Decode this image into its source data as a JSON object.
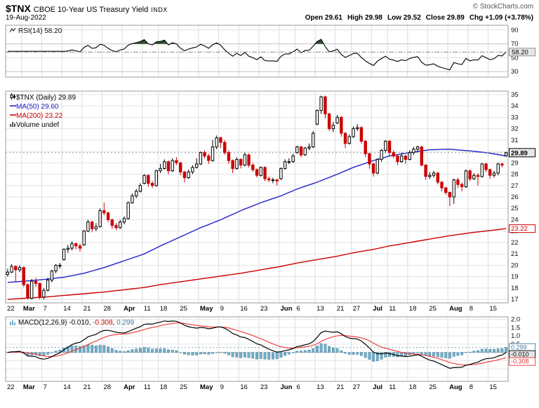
{
  "header": {
    "symbol": "$TNX",
    "name": "CBOE 10-Year US Treasury Yield",
    "exchange": "INDX",
    "copyright": "© StockCharts.com",
    "date": "19-Aug-2022",
    "quote": {
      "items": [
        {
          "label": "Open",
          "value": "29.61"
        },
        {
          "label": "High",
          "value": "29.98"
        },
        {
          "label": "Low",
          "value": "29.52"
        },
        {
          "label": "Close",
          "value": "29.89"
        },
        {
          "label": "Chg",
          "value": "+1.09 (+3.78%)"
        }
      ]
    }
  },
  "rsi_panel": {
    "label": "RSI(14) 58.20",
    "last_value": "58.20"
  },
  "main_panel": {
    "legend": {
      "tnx": "$TNX (Daily) 29.89",
      "ma50": "MA(50) 29.60",
      "ma200": "MA(200) 23.22",
      "volume": "Volume undef"
    },
    "last_price": "29.89",
    "ma200_value": "23.22"
  },
  "macd_panel": {
    "label": "MACD(12,26,9)",
    "macd_value": "-0.010",
    "signal_value": "-0.308",
    "hist_value": "0.299"
  },
  "chart_data": {
    "type": "candlestick",
    "symbol": "$TNX",
    "timeframe": "Daily",
    "date_range": "22-Feb-2022 to 19-Aug-2022",
    "x_week_labels": [
      "22",
      "Mar",
      "7",
      "14",
      "21",
      "28",
      "Apr",
      "11",
      "18",
      "25",
      "May",
      "9",
      "16",
      "23",
      "Jun",
      "6",
      "13",
      "21",
      "27",
      "Jul",
      "11",
      "18",
      "25",
      "Aug",
      "8",
      "15"
    ],
    "x_week_start_indices": [
      0,
      4,
      9,
      14,
      19,
      24,
      29,
      34,
      38,
      43,
      48,
      53,
      58,
      63,
      68,
      72,
      77,
      82,
      86,
      91,
      95,
      100,
      105,
      110,
      115,
      120
    ],
    "x_month_label_indices": [
      1,
      6,
      10,
      14,
      19,
      23
    ],
    "main_axis": {
      "min": 17,
      "max": 35,
      "tick_step": 1,
      "last_price": 29.89
    },
    "candles_ohlc": [
      [
        19.2,
        19.7,
        19.0,
        19.4
      ],
      [
        19.4,
        20.1,
        19.3,
        19.9
      ],
      [
        19.9,
        20.0,
        18.6,
        19.6
      ],
      [
        19.6,
        20.0,
        19.4,
        19.8
      ],
      [
        19.8,
        19.9,
        18.1,
        18.3
      ],
      [
        18.3,
        18.4,
        17.0,
        17.1
      ],
      [
        17.1,
        18.8,
        17.0,
        18.6
      ],
      [
        18.6,
        18.9,
        18.1,
        18.4
      ],
      [
        18.4,
        18.5,
        17.0,
        17.2
      ],
      [
        17.2,
        18.0,
        17.0,
        17.8
      ],
      [
        17.8,
        18.9,
        17.7,
        18.7
      ],
      [
        18.7,
        19.6,
        18.5,
        19.5
      ],
      [
        19.5,
        20.1,
        19.3,
        20.0
      ],
      [
        20.0,
        20.2,
        19.7,
        20.0
      ],
      [
        20.5,
        21.5,
        20.4,
        21.4
      ],
      [
        21.4,
        21.8,
        21.1,
        21.5
      ],
      [
        21.5,
        22.1,
        21.3,
        21.9
      ],
      [
        21.9,
        22.0,
        21.4,
        21.7
      ],
      [
        21.7,
        21.9,
        21.2,
        21.5
      ],
      [
        21.8,
        23.1,
        21.7,
        23.0
      ],
      [
        23.0,
        24.0,
        22.9,
        23.8
      ],
      [
        23.8,
        23.9,
        22.9,
        23.2
      ],
      [
        23.2,
        23.7,
        23.0,
        23.4
      ],
      [
        23.4,
        25.0,
        23.3,
        24.8
      ],
      [
        24.8,
        25.5,
        24.4,
        24.6
      ],
      [
        24.6,
        24.7,
        23.8,
        24.0
      ],
      [
        24.0,
        24.1,
        23.2,
        23.5
      ],
      [
        23.5,
        23.7,
        23.1,
        23.3
      ],
      [
        23.3,
        24.0,
        23.2,
        23.8
      ],
      [
        23.8,
        24.3,
        23.6,
        24.1
      ],
      [
        24.1,
        25.6,
        24.0,
        25.5
      ],
      [
        25.5,
        26.3,
        25.4,
        26.1
      ],
      [
        26.1,
        26.7,
        25.9,
        26.5
      ],
      [
        26.5,
        27.2,
        26.4,
        27.0
      ],
      [
        27.2,
        28.0,
        27.1,
        27.9
      ],
      [
        27.9,
        28.0,
        26.9,
        27.2
      ],
      [
        27.2,
        27.4,
        26.8,
        27.0
      ],
      [
        27.0,
        28.4,
        26.9,
        28.3
      ],
      [
        28.3,
        28.9,
        28.1,
        28.5
      ],
      [
        28.5,
        29.3,
        28.4,
        29.1
      ],
      [
        29.1,
        29.2,
        28.0,
        28.3
      ],
      [
        28.3,
        29.4,
        28.2,
        29.2
      ],
      [
        29.2,
        29.5,
        28.8,
        29.0
      ],
      [
        29.0,
        29.1,
        27.9,
        28.2
      ],
      [
        28.2,
        28.3,
        27.3,
        27.7
      ],
      [
        27.7,
        28.4,
        27.6,
        28.2
      ],
      [
        28.2,
        28.8,
        28.0,
        28.6
      ],
      [
        28.6,
        29.4,
        28.5,
        28.9
      ],
      [
        28.9,
        30.0,
        28.8,
        29.9
      ],
      [
        29.9,
        30.1,
        29.4,
        29.6
      ],
      [
        29.6,
        29.8,
        28.9,
        29.2
      ],
      [
        29.2,
        31.0,
        29.1,
        30.4
      ],
      [
        30.4,
        31.4,
        30.2,
        31.2
      ],
      [
        31.2,
        31.3,
        30.3,
        30.8
      ],
      [
        30.8,
        31.0,
        29.7,
        29.9
      ],
      [
        29.9,
        30.1,
        28.9,
        29.2
      ],
      [
        29.2,
        29.3,
        28.1,
        28.5
      ],
      [
        28.5,
        29.5,
        28.4,
        29.3
      ],
      [
        29.3,
        29.4,
        28.5,
        28.8
      ],
      [
        28.8,
        29.9,
        28.7,
        29.7
      ],
      [
        29.7,
        29.8,
        28.6,
        28.8
      ],
      [
        28.8,
        29.0,
        28.2,
        28.4
      ],
      [
        28.4,
        28.5,
        27.7,
        27.9
      ],
      [
        27.9,
        28.7,
        27.8,
        28.6
      ],
      [
        28.6,
        28.7,
        27.4,
        27.6
      ],
      [
        27.6,
        27.8,
        27.3,
        27.5
      ],
      [
        27.5,
        27.7,
        27.2,
        27.5
      ],
      [
        27.5,
        27.6,
        27.0,
        27.4
      ],
      [
        27.6,
        28.6,
        27.5,
        28.5
      ],
      [
        28.5,
        29.3,
        28.4,
        29.1
      ],
      [
        29.1,
        29.4,
        28.9,
        29.1
      ],
      [
        29.1,
        29.8,
        29.0,
        29.6
      ],
      [
        29.9,
        30.5,
        29.8,
        30.4
      ],
      [
        30.4,
        30.5,
        29.5,
        29.7
      ],
      [
        29.7,
        30.4,
        29.6,
        30.3
      ],
      [
        30.3,
        30.7,
        30.1,
        30.4
      ],
      [
        30.4,
        31.8,
        30.3,
        31.6
      ],
      [
        32.4,
        33.7,
        32.3,
        33.6
      ],
      [
        33.6,
        34.9,
        33.3,
        34.8
      ],
      [
        34.8,
        34.9,
        32.9,
        33.3
      ],
      [
        33.3,
        33.4,
        31.8,
        32.0
      ],
      [
        32.0,
        32.6,
        31.7,
        32.3
      ],
      [
        32.5,
        33.2,
        32.4,
        33.0
      ],
      [
        33.0,
        33.1,
        31.3,
        31.6
      ],
      [
        31.6,
        31.7,
        30.3,
        30.7
      ],
      [
        30.7,
        31.5,
        30.6,
        31.3
      ],
      [
        31.3,
        32.2,
        31.2,
        32.0
      ],
      [
        32.0,
        32.4,
        31.8,
        32.1
      ],
      [
        32.1,
        32.2,
        30.7,
        30.9
      ],
      [
        30.9,
        31.0,
        29.5,
        29.8
      ],
      [
        29.8,
        29.9,
        28.5,
        28.9
      ],
      [
        28.9,
        29.0,
        27.8,
        28.1
      ],
      [
        28.1,
        29.4,
        28.0,
        29.3
      ],
      [
        29.3,
        30.2,
        29.1,
        30.1
      ],
      [
        30.1,
        31.0,
        29.9,
        30.9
      ],
      [
        30.9,
        31.0,
        29.6,
        29.9
      ],
      [
        29.9,
        30.1,
        29.4,
        29.6
      ],
      [
        29.6,
        29.7,
        28.8,
        29.1
      ],
      [
        29.1,
        29.9,
        29.0,
        29.6
      ],
      [
        29.6,
        29.7,
        28.9,
        29.3
      ],
      [
        29.3,
        30.1,
        29.2,
        29.9
      ],
      [
        29.9,
        30.4,
        29.7,
        30.2
      ],
      [
        30.2,
        30.5,
        29.9,
        30.4
      ],
      [
        30.4,
        30.5,
        28.7,
        28.8
      ],
      [
        28.8,
        28.9,
        27.5,
        27.8
      ],
      [
        27.8,
        28.2,
        27.6,
        27.9
      ],
      [
        27.9,
        28.3,
        27.7,
        28.1
      ],
      [
        28.1,
        28.2,
        27.1,
        27.3
      ],
      [
        27.3,
        27.4,
        26.5,
        26.8
      ],
      [
        26.8,
        26.9,
        26.2,
        26.4
      ],
      [
        26.4,
        26.5,
        25.2,
        26.0
      ],
      [
        26.0,
        27.6,
        25.4,
        27.5
      ],
      [
        27.5,
        27.7,
        26.8,
        27.1
      ],
      [
        27.1,
        27.3,
        26.5,
        26.9
      ],
      [
        26.9,
        28.4,
        26.8,
        28.3
      ],
      [
        28.3,
        28.4,
        27.4,
        27.6
      ],
      [
        27.6,
        28.1,
        27.5,
        27.9
      ],
      [
        27.9,
        28.1,
        27.0,
        27.8
      ],
      [
        27.8,
        29.0,
        27.7,
        28.9
      ],
      [
        28.9,
        29.0,
        28.2,
        28.4
      ],
      [
        28.4,
        28.5,
        27.6,
        27.9
      ],
      [
        27.9,
        28.3,
        27.7,
        28.1
      ],
      [
        28.1,
        29.0,
        27.9,
        28.9
      ],
      [
        28.9,
        29.0,
        28.6,
        28.8
      ],
      [
        29.61,
        29.98,
        29.52,
        29.89
      ]
    ],
    "ma50": {
      "period": 50,
      "last": 29.6,
      "anchor_indices": [
        0,
        4,
        9,
        14,
        19,
        24,
        29,
        34,
        38,
        43,
        48,
        53,
        58,
        63,
        68,
        72,
        77,
        82,
        86,
        91,
        95,
        100,
        105,
        110,
        115,
        120,
        124
      ],
      "anchor_values": [
        18.5,
        18.6,
        18.75,
        18.95,
        19.3,
        19.8,
        20.4,
        21.0,
        21.7,
        22.5,
        23.3,
        24.0,
        24.8,
        25.5,
        26.1,
        26.7,
        27.3,
        28.0,
        28.6,
        29.2,
        29.6,
        29.9,
        30.15,
        30.2,
        30.05,
        29.85,
        29.6
      ]
    },
    "ma200": {
      "period": 200,
      "last": 23.22,
      "anchor_indices": [
        0,
        4,
        9,
        14,
        19,
        24,
        29,
        34,
        38,
        43,
        48,
        53,
        58,
        63,
        68,
        72,
        77,
        82,
        86,
        91,
        95,
        100,
        105,
        110,
        115,
        120,
        124
      ],
      "anchor_values": [
        17.0,
        17.1,
        17.2,
        17.35,
        17.5,
        17.65,
        17.85,
        18.05,
        18.3,
        18.55,
        18.8,
        19.05,
        19.3,
        19.6,
        19.9,
        20.2,
        20.5,
        20.8,
        21.1,
        21.4,
        21.7,
        22.0,
        22.3,
        22.6,
        22.85,
        23.05,
        23.22
      ]
    },
    "rsi": {
      "period": 14,
      "last": 58.2,
      "overbought": 70,
      "oversold": 30,
      "ticks": [
        90,
        70,
        50,
        30
      ],
      "range": [
        22,
        97
      ]
    },
    "macd": {
      "params": [
        12,
        26,
        9
      ],
      "last_macd": -0.01,
      "last_signal": -0.308,
      "last_hist": 0.299,
      "ticks": [
        2.0,
        1.5,
        1.0,
        0.5
      ],
      "range": [
        -1.75,
        2.15
      ]
    },
    "colors": {
      "up_candle": "#000000",
      "down_candle": "#cc0000",
      "ma50": "#2222cc",
      "ma200": "#cc0000",
      "rsi_line": "#000000",
      "rsi_overbought_fill": "#2d4f2d",
      "macd_line": "#000000",
      "macd_signal": "#ee3333",
      "macd_hist_fill": "#74aec6",
      "macd_hist_stroke": "#44819f",
      "grid": "#e3e3e3",
      "panel_border": "#999999",
      "accent_gray_box": "#e6e6e6"
    }
  }
}
